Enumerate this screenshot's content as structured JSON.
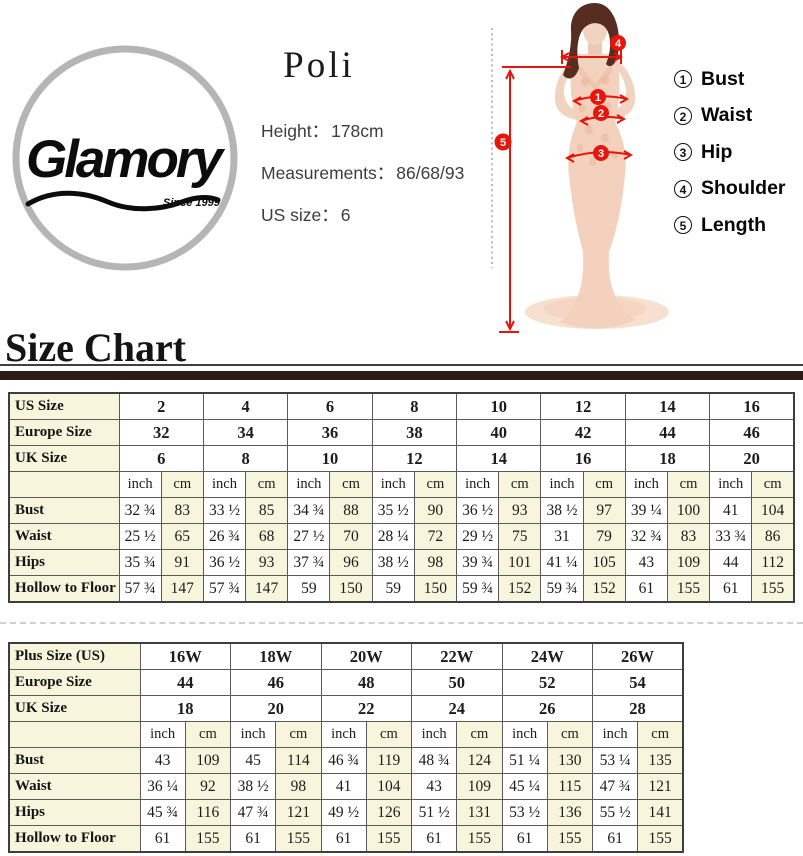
{
  "brand": {
    "name": "Glamory",
    "since": "Since 1999"
  },
  "product": {
    "name": "Poli",
    "separator": "：",
    "details": [
      {
        "label": "Height",
        "value": "178cm"
      },
      {
        "label": "Measurements",
        "value": "86/68/93"
      },
      {
        "label": "US size",
        "value": "6"
      }
    ]
  },
  "measurement_legend": [
    {
      "num": "1",
      "label": "Bust"
    },
    {
      "num": "2",
      "label": "Waist"
    },
    {
      "num": "3",
      "label": "Hip"
    },
    {
      "num": "4",
      "label": "Shoulder"
    },
    {
      "num": "5",
      "label": "Length"
    }
  ],
  "figure": {
    "markers": [
      "1",
      "2",
      "3",
      "4",
      "5"
    ]
  },
  "section_title": "Size Chart",
  "size_chart": {
    "standard": {
      "size_rows": [
        {
          "label": "US Size",
          "values": [
            "2",
            "4",
            "6",
            "8",
            "10",
            "12",
            "14",
            "16"
          ]
        },
        {
          "label": "Europe Size",
          "values": [
            "32",
            "34",
            "36",
            "38",
            "40",
            "42",
            "44",
            "46"
          ]
        },
        {
          "label": "UK Size",
          "values": [
            "6",
            "8",
            "10",
            "12",
            "14",
            "16",
            "18",
            "20"
          ]
        }
      ],
      "units": {
        "inch": "inch",
        "cm": "cm"
      },
      "measure_rows": [
        {
          "label": "Bust",
          "values": [
            "32 ¾",
            "83",
            "33 ½",
            "85",
            "34 ¾",
            "88",
            "35 ½",
            "90",
            "36 ½",
            "93",
            "38 ½",
            "97",
            "39 ¼",
            "100",
            "41",
            "104"
          ]
        },
        {
          "label": "Waist",
          "values": [
            "25 ½",
            "65",
            "26 ¾",
            "68",
            "27 ½",
            "70",
            "28 ¼",
            "72",
            "29 ½",
            "75",
            "31",
            "79",
            "32 ¾",
            "83",
            "33 ¾",
            "86"
          ]
        },
        {
          "label": "Hips",
          "values": [
            "35 ¾",
            "91",
            "36 ½",
            "93",
            "37 ¾",
            "96",
            "38 ½",
            "98",
            "39 ¾",
            "101",
            "41 ¼",
            "105",
            "43",
            "109",
            "44",
            "112"
          ]
        },
        {
          "label": "Hollow to Floor",
          "values": [
            "57 ¾",
            "147",
            "57 ¾",
            "147",
            "59",
            "150",
            "59",
            "150",
            "59 ¾",
            "152",
            "59 ¾",
            "152",
            "61",
            "155",
            "61",
            "155"
          ]
        }
      ]
    },
    "plus": {
      "size_rows": [
        {
          "label": "Plus Size (US)",
          "values": [
            "16W",
            "18W",
            "20W",
            "22W",
            "24W",
            "26W"
          ]
        },
        {
          "label": "Europe Size",
          "values": [
            "44",
            "46",
            "48",
            "50",
            "52",
            "54"
          ]
        },
        {
          "label": "UK Size",
          "values": [
            "18",
            "20",
            "22",
            "24",
            "26",
            "28"
          ]
        }
      ],
      "units": {
        "inch": "inch",
        "cm": "cm"
      },
      "measure_rows": [
        {
          "label": "Bust",
          "values": [
            "43",
            "109",
            "45",
            "114",
            "46 ¾",
            "119",
            "48 ¾",
            "124",
            "51 ¼",
            "130",
            "53 ¼",
            "135"
          ]
        },
        {
          "label": "Waist",
          "values": [
            "36 ¼",
            "92",
            "38 ½",
            "98",
            "41",
            "104",
            "43",
            "109",
            "45 ¼",
            "115",
            "47 ¾",
            "121"
          ]
        },
        {
          "label": "Hips",
          "values": [
            "45 ¾",
            "116",
            "47 ¾",
            "121",
            "49 ½",
            "126",
            "51 ½",
            "131",
            "53 ½",
            "136",
            "55 ½",
            "141"
          ]
        },
        {
          "label": "Hollow to Floor",
          "values": [
            "61",
            "155",
            "61",
            "155",
            "61",
            "155",
            "61",
            "155",
            "61",
            "155",
            "61",
            "155"
          ]
        }
      ]
    }
  },
  "colors": {
    "annotation_red": "#e8150b",
    "table_cream": "#f7f5dc",
    "band_dark": "#2b1d15",
    "dress_peach": "#f4d1bc",
    "hair_brown": "#572c21",
    "skin": "#f1d4c0"
  }
}
